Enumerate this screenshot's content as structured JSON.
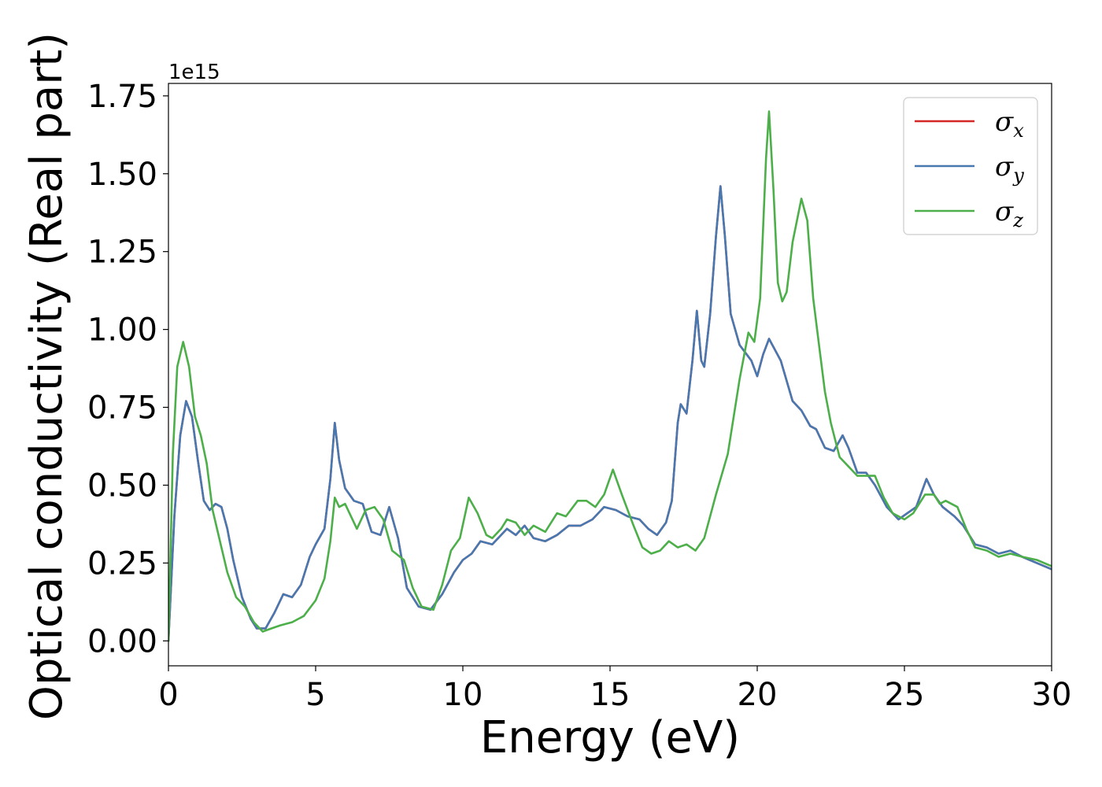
{
  "chart_data": {
    "type": "line",
    "title": "",
    "xlabel": "Energy (eV)",
    "ylabel": "Optical conductivity (Real part)",
    "y_offset_label": "1e15",
    "xlim": [
      0,
      30
    ],
    "ylim": [
      -0.08,
      1.79
    ],
    "x_ticks": [
      0,
      5,
      10,
      15,
      20,
      25,
      30
    ],
    "x_tick_labels": [
      "0",
      "5",
      "10",
      "15",
      "20",
      "25",
      "30"
    ],
    "y_ticks": [
      0.0,
      0.25,
      0.5,
      0.75,
      1.0,
      1.25,
      1.5,
      1.75
    ],
    "y_tick_labels": [
      "0.00",
      "0.25",
      "0.50",
      "0.75",
      "1.00",
      "1.25",
      "1.50",
      "1.75"
    ],
    "grid": false,
    "legend_position": "top-right",
    "series": [
      {
        "name": "σx",
        "legend_symbol": "σ",
        "legend_sub": "x",
        "color": "#d62728",
        "points": [
          [
            0,
            0
          ],
          [
            0.2,
            0.4
          ],
          [
            0.4,
            0.66
          ],
          [
            0.6,
            0.77
          ],
          [
            0.8,
            0.72
          ],
          [
            1.0,
            0.58
          ],
          [
            1.2,
            0.45
          ],
          [
            1.4,
            0.42
          ],
          [
            1.6,
            0.44
          ],
          [
            1.8,
            0.43
          ],
          [
            2.0,
            0.36
          ],
          [
            2.2,
            0.26
          ],
          [
            2.5,
            0.14
          ],
          [
            2.8,
            0.07
          ],
          [
            3.0,
            0.04
          ],
          [
            3.3,
            0.04
          ],
          [
            3.6,
            0.09
          ],
          [
            3.9,
            0.15
          ],
          [
            4.2,
            0.14
          ],
          [
            4.5,
            0.18
          ],
          [
            4.8,
            0.27
          ],
          [
            5.0,
            0.31
          ],
          [
            5.3,
            0.36
          ],
          [
            5.5,
            0.52
          ],
          [
            5.65,
            0.7
          ],
          [
            5.8,
            0.58
          ],
          [
            6.0,
            0.49
          ],
          [
            6.3,
            0.45
          ],
          [
            6.6,
            0.44
          ],
          [
            6.9,
            0.35
          ],
          [
            7.2,
            0.34
          ],
          [
            7.5,
            0.43
          ],
          [
            7.8,
            0.33
          ],
          [
            8.1,
            0.17
          ],
          [
            8.5,
            0.11
          ],
          [
            8.9,
            0.1
          ],
          [
            9.3,
            0.15
          ],
          [
            9.7,
            0.22
          ],
          [
            10.0,
            0.26
          ],
          [
            10.3,
            0.28
          ],
          [
            10.6,
            0.32
          ],
          [
            11.0,
            0.31
          ],
          [
            11.5,
            0.36
          ],
          [
            11.8,
            0.34
          ],
          [
            12.1,
            0.37
          ],
          [
            12.4,
            0.33
          ],
          [
            12.8,
            0.32
          ],
          [
            13.2,
            0.34
          ],
          [
            13.6,
            0.37
          ],
          [
            14.0,
            0.37
          ],
          [
            14.4,
            0.39
          ],
          [
            14.8,
            0.43
          ],
          [
            15.2,
            0.42
          ],
          [
            15.6,
            0.4
          ],
          [
            16.0,
            0.39
          ],
          [
            16.3,
            0.36
          ],
          [
            16.6,
            0.34
          ],
          [
            16.9,
            0.38
          ],
          [
            17.1,
            0.45
          ],
          [
            17.3,
            0.7
          ],
          [
            17.4,
            0.76
          ],
          [
            17.6,
            0.73
          ],
          [
            17.8,
            0.9
          ],
          [
            17.95,
            1.06
          ],
          [
            18.1,
            0.9
          ],
          [
            18.2,
            0.88
          ],
          [
            18.4,
            1.05
          ],
          [
            18.6,
            1.3
          ],
          [
            18.75,
            1.46
          ],
          [
            18.9,
            1.3
          ],
          [
            19.1,
            1.05
          ],
          [
            19.4,
            0.95
          ],
          [
            19.8,
            0.9
          ],
          [
            20.0,
            0.85
          ],
          [
            20.2,
            0.92
          ],
          [
            20.4,
            0.97
          ],
          [
            20.8,
            0.9
          ],
          [
            21.2,
            0.77
          ],
          [
            21.5,
            0.74
          ],
          [
            21.8,
            0.69
          ],
          [
            22.0,
            0.68
          ],
          [
            22.3,
            0.62
          ],
          [
            22.6,
            0.61
          ],
          [
            22.9,
            0.66
          ],
          [
            23.1,
            0.62
          ],
          [
            23.4,
            0.54
          ],
          [
            23.7,
            0.54
          ],
          [
            24.0,
            0.5
          ],
          [
            24.4,
            0.43
          ],
          [
            24.8,
            0.39
          ],
          [
            25.1,
            0.41
          ],
          [
            25.4,
            0.43
          ],
          [
            25.75,
            0.52
          ],
          [
            26.0,
            0.47
          ],
          [
            26.3,
            0.43
          ],
          [
            26.7,
            0.4
          ],
          [
            27.0,
            0.37
          ],
          [
            27.4,
            0.31
          ],
          [
            27.8,
            0.3
          ],
          [
            28.2,
            0.28
          ],
          [
            28.6,
            0.29
          ],
          [
            29.0,
            0.27
          ],
          [
            29.5,
            0.25
          ],
          [
            30.0,
            0.23
          ]
        ]
      },
      {
        "name": "σy",
        "legend_symbol": "σ",
        "legend_sub": "y",
        "color": "#4878b0",
        "points": [
          [
            0,
            0
          ],
          [
            0.2,
            0.4
          ],
          [
            0.4,
            0.66
          ],
          [
            0.6,
            0.77
          ],
          [
            0.8,
            0.72
          ],
          [
            1.0,
            0.58
          ],
          [
            1.2,
            0.45
          ],
          [
            1.4,
            0.42
          ],
          [
            1.6,
            0.44
          ],
          [
            1.8,
            0.43
          ],
          [
            2.0,
            0.36
          ],
          [
            2.2,
            0.26
          ],
          [
            2.5,
            0.14
          ],
          [
            2.8,
            0.07
          ],
          [
            3.0,
            0.04
          ],
          [
            3.3,
            0.04
          ],
          [
            3.6,
            0.09
          ],
          [
            3.9,
            0.15
          ],
          [
            4.2,
            0.14
          ],
          [
            4.5,
            0.18
          ],
          [
            4.8,
            0.27
          ],
          [
            5.0,
            0.31
          ],
          [
            5.3,
            0.36
          ],
          [
            5.5,
            0.52
          ],
          [
            5.65,
            0.7
          ],
          [
            5.8,
            0.58
          ],
          [
            6.0,
            0.49
          ],
          [
            6.3,
            0.45
          ],
          [
            6.6,
            0.44
          ],
          [
            6.9,
            0.35
          ],
          [
            7.2,
            0.34
          ],
          [
            7.5,
            0.43
          ],
          [
            7.8,
            0.33
          ],
          [
            8.1,
            0.17
          ],
          [
            8.5,
            0.11
          ],
          [
            8.9,
            0.1
          ],
          [
            9.3,
            0.15
          ],
          [
            9.7,
            0.22
          ],
          [
            10.0,
            0.26
          ],
          [
            10.3,
            0.28
          ],
          [
            10.6,
            0.32
          ],
          [
            11.0,
            0.31
          ],
          [
            11.5,
            0.36
          ],
          [
            11.8,
            0.34
          ],
          [
            12.1,
            0.37
          ],
          [
            12.4,
            0.33
          ],
          [
            12.8,
            0.32
          ],
          [
            13.2,
            0.34
          ],
          [
            13.6,
            0.37
          ],
          [
            14.0,
            0.37
          ],
          [
            14.4,
            0.39
          ],
          [
            14.8,
            0.43
          ],
          [
            15.2,
            0.42
          ],
          [
            15.6,
            0.4
          ],
          [
            16.0,
            0.39
          ],
          [
            16.3,
            0.36
          ],
          [
            16.6,
            0.34
          ],
          [
            16.9,
            0.38
          ],
          [
            17.1,
            0.45
          ],
          [
            17.3,
            0.7
          ],
          [
            17.4,
            0.76
          ],
          [
            17.6,
            0.73
          ],
          [
            17.8,
            0.9
          ],
          [
            17.95,
            1.06
          ],
          [
            18.1,
            0.9
          ],
          [
            18.2,
            0.88
          ],
          [
            18.4,
            1.05
          ],
          [
            18.6,
            1.3
          ],
          [
            18.75,
            1.46
          ],
          [
            18.9,
            1.3
          ],
          [
            19.1,
            1.05
          ],
          [
            19.4,
            0.95
          ],
          [
            19.8,
            0.9
          ],
          [
            20.0,
            0.85
          ],
          [
            20.2,
            0.92
          ],
          [
            20.4,
            0.97
          ],
          [
            20.8,
            0.9
          ],
          [
            21.2,
            0.77
          ],
          [
            21.5,
            0.74
          ],
          [
            21.8,
            0.69
          ],
          [
            22.0,
            0.68
          ],
          [
            22.3,
            0.62
          ],
          [
            22.6,
            0.61
          ],
          [
            22.9,
            0.66
          ],
          [
            23.1,
            0.62
          ],
          [
            23.4,
            0.54
          ],
          [
            23.7,
            0.54
          ],
          [
            24.0,
            0.5
          ],
          [
            24.4,
            0.43
          ],
          [
            24.8,
            0.39
          ],
          [
            25.1,
            0.41
          ],
          [
            25.4,
            0.43
          ],
          [
            25.75,
            0.52
          ],
          [
            26.0,
            0.47
          ],
          [
            26.3,
            0.43
          ],
          [
            26.7,
            0.4
          ],
          [
            27.0,
            0.37
          ],
          [
            27.4,
            0.31
          ],
          [
            27.8,
            0.3
          ],
          [
            28.2,
            0.28
          ],
          [
            28.6,
            0.29
          ],
          [
            29.0,
            0.27
          ],
          [
            29.5,
            0.25
          ],
          [
            30.0,
            0.23
          ]
        ]
      },
      {
        "name": "σz",
        "legend_symbol": "σ",
        "legend_sub": "z",
        "color": "#4daf4a",
        "points": [
          [
            0,
            0
          ],
          [
            0.15,
            0.6
          ],
          [
            0.3,
            0.88
          ],
          [
            0.5,
            0.96
          ],
          [
            0.7,
            0.88
          ],
          [
            0.9,
            0.72
          ],
          [
            1.1,
            0.66
          ],
          [
            1.3,
            0.57
          ],
          [
            1.5,
            0.42
          ],
          [
            1.8,
            0.3
          ],
          [
            2.0,
            0.22
          ],
          [
            2.3,
            0.14
          ],
          [
            2.6,
            0.11
          ],
          [
            2.9,
            0.06
          ],
          [
            3.2,
            0.03
          ],
          [
            3.5,
            0.04
          ],
          [
            3.8,
            0.05
          ],
          [
            4.2,
            0.06
          ],
          [
            4.6,
            0.08
          ],
          [
            5.0,
            0.13
          ],
          [
            5.3,
            0.2
          ],
          [
            5.5,
            0.32
          ],
          [
            5.65,
            0.46
          ],
          [
            5.8,
            0.43
          ],
          [
            6.0,
            0.44
          ],
          [
            6.2,
            0.4
          ],
          [
            6.4,
            0.36
          ],
          [
            6.7,
            0.42
          ],
          [
            7.0,
            0.43
          ],
          [
            7.3,
            0.39
          ],
          [
            7.6,
            0.29
          ],
          [
            8.0,
            0.26
          ],
          [
            8.3,
            0.17
          ],
          [
            8.6,
            0.11
          ],
          [
            9.0,
            0.1
          ],
          [
            9.3,
            0.18
          ],
          [
            9.6,
            0.29
          ],
          [
            9.9,
            0.33
          ],
          [
            10.2,
            0.46
          ],
          [
            10.5,
            0.41
          ],
          [
            10.8,
            0.34
          ],
          [
            11.0,
            0.33
          ],
          [
            11.3,
            0.36
          ],
          [
            11.5,
            0.39
          ],
          [
            11.8,
            0.38
          ],
          [
            12.1,
            0.34
          ],
          [
            12.4,
            0.37
          ],
          [
            12.8,
            0.35
          ],
          [
            13.2,
            0.41
          ],
          [
            13.5,
            0.4
          ],
          [
            13.9,
            0.45
          ],
          [
            14.2,
            0.45
          ],
          [
            14.5,
            0.43
          ],
          [
            14.8,
            0.47
          ],
          [
            15.1,
            0.55
          ],
          [
            15.4,
            0.47
          ],
          [
            15.8,
            0.37
          ],
          [
            16.1,
            0.3
          ],
          [
            16.4,
            0.28
          ],
          [
            16.7,
            0.29
          ],
          [
            17.0,
            0.32
          ],
          [
            17.3,
            0.3
          ],
          [
            17.6,
            0.31
          ],
          [
            17.9,
            0.29
          ],
          [
            18.2,
            0.33
          ],
          [
            18.6,
            0.47
          ],
          [
            19.0,
            0.6
          ],
          [
            19.4,
            0.84
          ],
          [
            19.7,
            0.99
          ],
          [
            19.9,
            0.96
          ],
          [
            20.1,
            1.1
          ],
          [
            20.3,
            1.55
          ],
          [
            20.4,
            1.7
          ],
          [
            20.55,
            1.45
          ],
          [
            20.7,
            1.15
          ],
          [
            20.85,
            1.09
          ],
          [
            21.0,
            1.12
          ],
          [
            21.2,
            1.28
          ],
          [
            21.5,
            1.42
          ],
          [
            21.7,
            1.35
          ],
          [
            21.9,
            1.1
          ],
          [
            22.1,
            0.95
          ],
          [
            22.3,
            0.8
          ],
          [
            22.5,
            0.7
          ],
          [
            22.8,
            0.59
          ],
          [
            23.1,
            0.56
          ],
          [
            23.4,
            0.53
          ],
          [
            23.8,
            0.53
          ],
          [
            24.0,
            0.53
          ],
          [
            24.3,
            0.46
          ],
          [
            24.6,
            0.41
          ],
          [
            25.0,
            0.39
          ],
          [
            25.3,
            0.41
          ],
          [
            25.7,
            0.47
          ],
          [
            26.0,
            0.47
          ],
          [
            26.2,
            0.44
          ],
          [
            26.4,
            0.45
          ],
          [
            26.8,
            0.43
          ],
          [
            27.1,
            0.36
          ],
          [
            27.4,
            0.3
          ],
          [
            27.8,
            0.29
          ],
          [
            28.2,
            0.27
          ],
          [
            28.6,
            0.28
          ],
          [
            29.0,
            0.27
          ],
          [
            29.5,
            0.26
          ],
          [
            30.0,
            0.24
          ]
        ]
      }
    ]
  }
}
